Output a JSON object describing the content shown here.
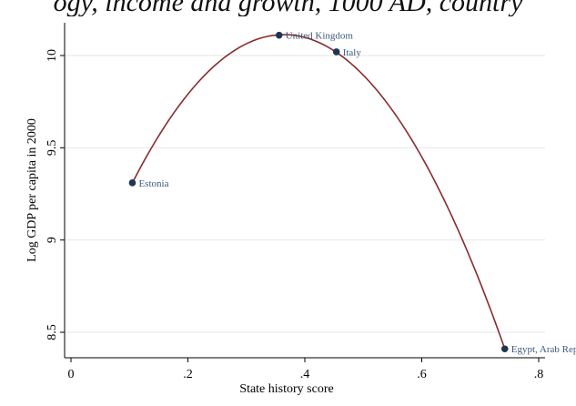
{
  "caption_fragment": "ogy, income and growth, 1000 AD, country",
  "chart_data": {
    "type": "scatter",
    "title": "",
    "xlabel": "State history score",
    "ylabel": "Log GDP per capita in 2000",
    "xlim": [
      0,
      0.8
    ],
    "ylim": [
      8.5,
      10.1
    ],
    "xticks": [
      0,
      0.2,
      0.4,
      0.6,
      0.8
    ],
    "xtick_labels": [
      "0",
      ".2",
      ".4",
      ".6",
      ".8"
    ],
    "yticks": [
      8.5,
      9,
      9.5,
      10
    ],
    "ytick_labels": [
      "8.5",
      "9",
      "9.5",
      "10"
    ],
    "grid": true,
    "points": [
      {
        "label": "Estonia",
        "x": 0.105,
        "y": 9.31
      },
      {
        "label": "United Kingdom",
        "x": 0.356,
        "y": 10.11
      },
      {
        "label": "Italy",
        "x": 0.454,
        "y": 10.02
      },
      {
        "label": "Egypt, Arab Rep.",
        "x": 0.742,
        "y": 8.41
      }
    ],
    "fit": {
      "type": "quadratic",
      "x_range": [
        0.105,
        0.742
      ],
      "color": "#8b2b2e"
    },
    "colors": {
      "marker": "#1f3552",
      "label": "#3b5a7c",
      "grid": "#e6e6e6",
      "axis": "#000000"
    }
  }
}
